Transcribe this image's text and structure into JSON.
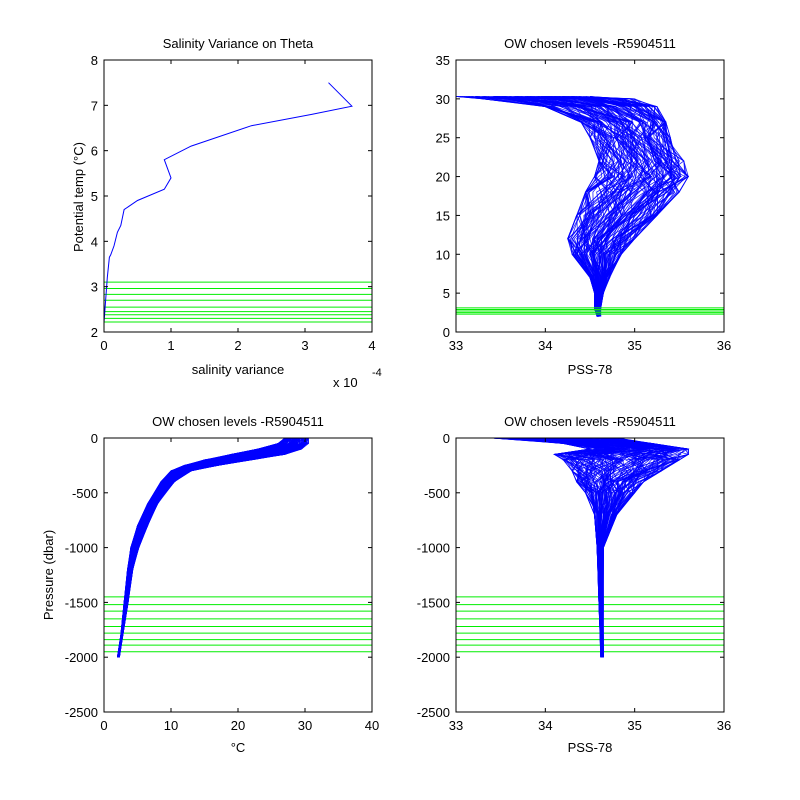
{
  "figure": {
    "background": "#ffffff",
    "profile_color": "#0000ff",
    "level_color": "#00ee00"
  },
  "chart_data": [
    {
      "type": "line",
      "title": "Salinity Variance on Theta",
      "xlabel": "salinity variance",
      "ylabel": "Potential temp (°C)",
      "x_multiplier_label": "x 10",
      "x_multiplier_exponent": "-4",
      "xlim": [
        0,
        4
      ],
      "ylim": [
        2,
        8
      ],
      "xticks": [
        0,
        1,
        2,
        3,
        4
      ],
      "yticks": [
        2,
        3,
        4,
        5,
        6,
        7,
        8
      ],
      "series": [
        {
          "x": [
            0.0,
            0.02,
            0.05,
            0.08,
            0.1,
            0.15,
            0.2,
            0.25,
            0.3,
            0.5,
            0.9,
            1.0,
            0.9,
            1.3,
            2.2,
            3.1,
            3.7,
            3.35
          ],
          "y": [
            2.2,
            2.6,
            3.2,
            3.65,
            3.7,
            3.9,
            4.2,
            4.35,
            4.7,
            4.9,
            5.15,
            5.4,
            5.8,
            6.1,
            6.55,
            6.8,
            6.98,
            7.5
          ]
        }
      ],
      "levels": [
        3.1,
        2.96,
        2.83,
        2.7,
        2.55,
        2.45,
        2.38,
        2.3,
        2.22
      ]
    },
    {
      "type": "line",
      "title": "OW chosen levels -R5904511",
      "xlabel": "PSS-78",
      "ylabel": "",
      "xlim": [
        33,
        36
      ],
      "ylim": [
        0,
        35
      ],
      "xticks": [
        33,
        34,
        35,
        36
      ],
      "yticks": [
        0,
        5,
        10,
        15,
        20,
        25,
        30,
        35
      ],
      "envelope": {
        "y": [
          2.0,
          3,
          5,
          7,
          10,
          12,
          15,
          18,
          20,
          22,
          25,
          27,
          29,
          30,
          30.3
        ],
        "lo": [
          34.58,
          34.55,
          34.55,
          34.5,
          34.3,
          34.25,
          34.35,
          34.45,
          34.55,
          34.6,
          34.5,
          34.4,
          34.0,
          33.3,
          33.0
        ],
        "hi": [
          34.62,
          34.62,
          34.65,
          34.72,
          34.85,
          35.0,
          35.25,
          35.5,
          35.6,
          35.55,
          35.4,
          35.35,
          35.25,
          35.0,
          34.5
        ]
      },
      "levels": [
        2.3,
        2.5,
        2.7,
        2.9,
        3.1
      ]
    },
    {
      "type": "line",
      "title": "OW chosen levels -R5904511",
      "xlabel": "°C",
      "ylabel": "Pressure (dbar)",
      "xlim": [
        0,
        40
      ],
      "ylim": [
        -2500,
        0
      ],
      "xticks": [
        0,
        10,
        20,
        30,
        40
      ],
      "yticks": [
        -2500,
        -2000,
        -1500,
        -1000,
        -500,
        0
      ],
      "envelope": {
        "y": [
          -2000,
          -1800,
          -1500,
          -1200,
          -1000,
          -800,
          -600,
          -400,
          -300,
          -250,
          -200,
          -150,
          -100,
          -50,
          0
        ],
        "lo": [
          2.0,
          2.5,
          3.0,
          3.5,
          4.0,
          5.0,
          6.5,
          8.5,
          10.0,
          12.0,
          15.0,
          19.0,
          23.0,
          26.0,
          27.0
        ],
        "hi": [
          2.3,
          2.8,
          3.6,
          4.3,
          5.2,
          6.5,
          8.0,
          10.5,
          13.0,
          17.0,
          22.0,
          27.0,
          29.5,
          30.5,
          30.5
        ]
      },
      "levels": [
        -1450,
        -1520,
        -1580,
        -1650,
        -1720,
        -1780,
        -1840,
        -1890,
        -1950
      ]
    },
    {
      "type": "line",
      "title": "OW chosen levels -R5904511",
      "xlabel": "PSS-78",
      "ylabel": "",
      "xlim": [
        33,
        36
      ],
      "ylim": [
        -2500,
        0
      ],
      "xticks": [
        33,
        34,
        35,
        36
      ],
      "yticks": [
        -2500,
        -2000,
        -1500,
        -1000,
        -500,
        0
      ],
      "envelope": {
        "y": [
          -2000,
          -1500,
          -1000,
          -700,
          -500,
          -400,
          -300,
          -200,
          -150,
          -100,
          -50,
          0
        ],
        "lo": [
          34.62,
          34.6,
          34.58,
          34.55,
          34.45,
          34.35,
          34.3,
          34.2,
          34.1,
          34.5,
          34.2,
          33.4
        ],
        "hi": [
          34.65,
          34.65,
          34.65,
          34.8,
          35.0,
          35.1,
          35.3,
          35.5,
          35.6,
          35.6,
          35.2,
          34.8
        ]
      },
      "levels": [
        -1450,
        -1520,
        -1580,
        -1650,
        -1720,
        -1780,
        -1840,
        -1890,
        -1950
      ]
    }
  ]
}
